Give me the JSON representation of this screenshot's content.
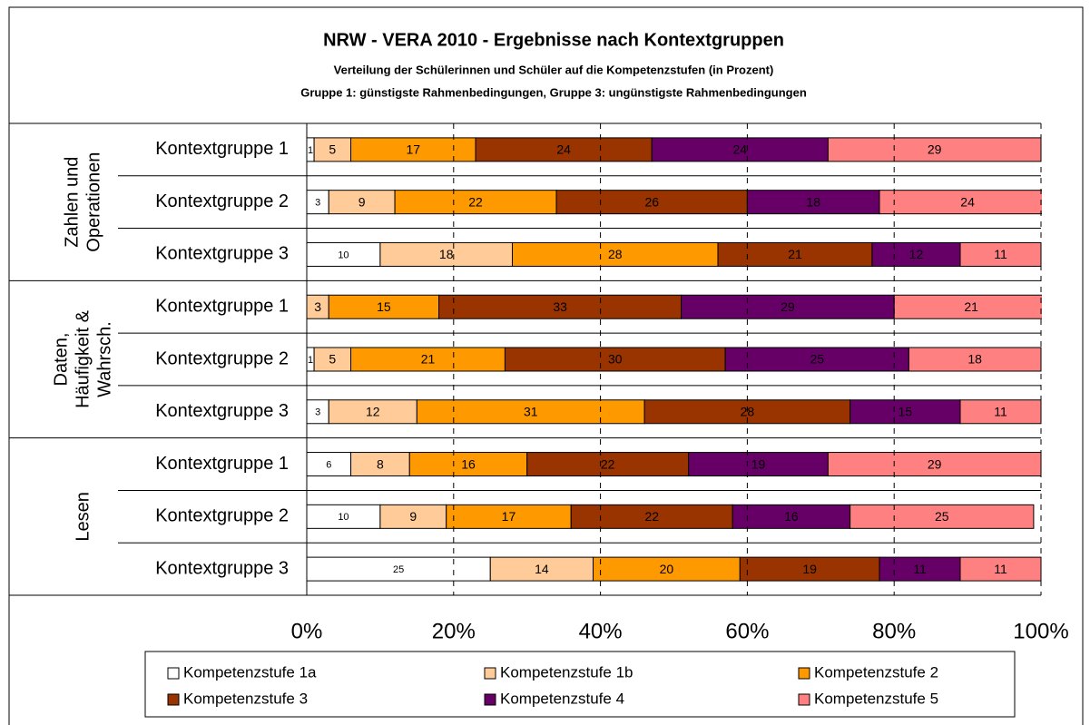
{
  "chart_data": {
    "type": "stacked_bar_horizontal",
    "title": "NRW - VERA 2010 - Ergebnisse nach Kontextgruppen",
    "subtitle": [
      "Verteilung der Schülerinnen und Schüler auf die Kompetenzstufen (in Prozent)",
      "Gruppe 1: günstigste Rahmenbedingungen, Gruppe 3: ungünstigste Rahmenbedingungen"
    ],
    "groups": [
      {
        "label_lines": [
          "Zahlen und",
          "Operationen"
        ],
        "categories": [
          "Kontextgruppe 1",
          "Kontextgruppe 2",
          "Kontextgruppe 3"
        ]
      },
      {
        "label_lines": [
          "Daten,",
          "Häufigkeit &",
          "Wahrsch."
        ],
        "categories": [
          "Kontextgruppe 1",
          "Kontextgruppe 2",
          "Kontextgruppe 3"
        ]
      },
      {
        "label_lines": [
          "Lesen"
        ],
        "categories": [
          "Kontextgruppe 1",
          "Kontextgruppe 2",
          "Kontextgruppe 3"
        ]
      }
    ],
    "series": [
      {
        "name": "Kompetenzstufe 1a",
        "color": "#ffffff",
        "values": [
          1,
          3,
          10,
          0,
          1,
          3,
          6,
          10,
          25
        ]
      },
      {
        "name": "Kompetenzstufe 1b",
        "color": "#ffcc99",
        "values": [
          5,
          9,
          18,
          3,
          5,
          12,
          8,
          9,
          14
        ]
      },
      {
        "name": "Kompetenzstufe 2",
        "color": "#ff9900",
        "values": [
          17,
          22,
          28,
          15,
          21,
          31,
          16,
          17,
          20
        ]
      },
      {
        "name": "Kompetenzstufe 3",
        "color": "#993300",
        "values": [
          24,
          26,
          21,
          33,
          30,
          28,
          22,
          22,
          19
        ]
      },
      {
        "name": "Kompetenzstufe 4",
        "color": "#660066",
        "values": [
          24,
          18,
          12,
          29,
          25,
          15,
          19,
          16,
          11
        ]
      },
      {
        "name": "Kompetenzstufe 5",
        "color": "#ff8080",
        "values": [
          29,
          24,
          11,
          21,
          18,
          11,
          29,
          25,
          11
        ]
      }
    ],
    "xlim": [
      0,
      100
    ],
    "xticks": [
      {
        "value": 0,
        "label": "0%"
      },
      {
        "value": 20,
        "label": "20%"
      },
      {
        "value": 40,
        "label": "40%"
      },
      {
        "value": 60,
        "label": "60%"
      },
      {
        "value": 80,
        "label": "80%"
      },
      {
        "value": 100,
        "label": "100%"
      }
    ],
    "grid": true
  }
}
